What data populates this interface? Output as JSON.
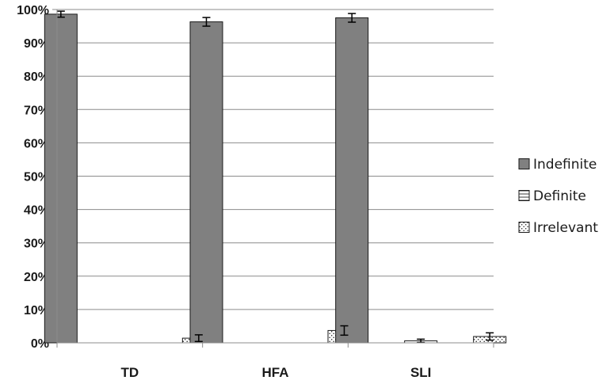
{
  "chart_data": {
    "type": "bar",
    "categories": [
      "TD",
      "HFA",
      "SLI"
    ],
    "series": [
      {
        "name": "Indefinite",
        "values": [
          98.6,
          96.3,
          97.5
        ],
        "errors": [
          0.9,
          1.3,
          1.3
        ],
        "fill": "#808080",
        "pattern": "solid"
      },
      {
        "name": "Definite",
        "values": [
          0,
          0,
          0.6
        ],
        "errors": [
          0,
          0,
          0.5
        ],
        "fill": "#ffffff",
        "pattern": "horizontal-lines"
      },
      {
        "name": "Irrelevant",
        "values": [
          1.4,
          3.7,
          1.9
        ],
        "errors": [
          1.0,
          1.4,
          1.1
        ],
        "fill": "#ffffff",
        "pattern": "dots"
      }
    ],
    "ylim": [
      0,
      100
    ],
    "yticks": [
      0,
      10,
      20,
      30,
      40,
      50,
      60,
      70,
      80,
      90,
      100
    ],
    "ytick_labels": [
      "0%",
      "10%",
      "20%",
      "30%",
      "40%",
      "50%",
      "60%",
      "70%",
      "80%",
      "90%",
      "100%"
    ],
    "title": "",
    "xlabel": "",
    "ylabel": "",
    "grid": true,
    "legend_position": "right"
  }
}
